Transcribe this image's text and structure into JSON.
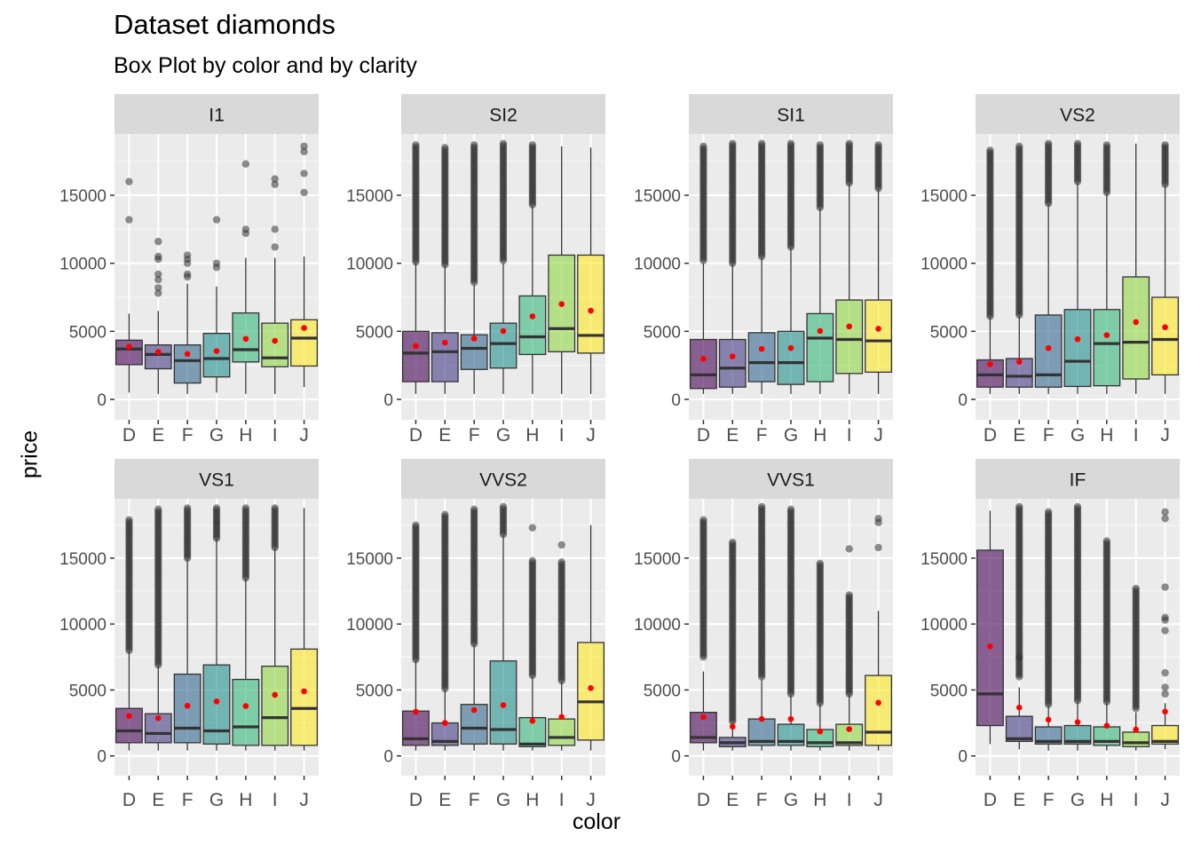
{
  "colors": {
    "panel_bg": "#EBEBEB",
    "strip_bg": "#D9D9D9",
    "grid_major": "#FFFFFF",
    "tick_label": "#4D4D4D",
    "mean_point": "#FF0000",
    "fill": {
      "D": "#440154",
      "E": "#443A83",
      "F": "#31688E",
      "G": "#21908C",
      "H": "#35B779",
      "I": "#8FD744",
      "J": "#FDE725"
    }
  },
  "chart_data": {
    "type": "box",
    "title": "Dataset diamonds",
    "subtitle": "Box Plot by color and by clarity",
    "xlabel": "color",
    "ylabel": "price",
    "categories": [
      "D",
      "E",
      "F",
      "G",
      "H",
      "I",
      "J"
    ],
    "facet_by": "clarity",
    "facet_layout": "2 rows x 4 columns, free y scales",
    "y_ticks": [
      0,
      5000,
      10000,
      15000
    ],
    "grid": true,
    "stat_point": "red point per box (mean)",
    "panels": [
      {
        "facet": "I1",
        "ylim": [
          -1500,
          19500
        ],
        "boxes": [
          {
            "cat": "D",
            "low": 500,
            "q1": 2550,
            "med": 3700,
            "q3": 4350,
            "high": 6300,
            "mean": 3860,
            "outliers": [
              13200,
              16000
            ]
          },
          {
            "cat": "E",
            "low": 400,
            "q1": 2250,
            "med": 3300,
            "q3": 4000,
            "high": 6500,
            "mean": 3490,
            "outliers": [
              7800,
              8200,
              8800,
              9200,
              10300,
              10500,
              11600
            ]
          },
          {
            "cat": "F",
            "low": 400,
            "q1": 1200,
            "med": 2850,
            "q3": 4000,
            "high": 8500,
            "mean": 3340,
            "outliers": [
              9000,
              9200,
              10000,
              10300,
              10600
            ]
          },
          {
            "cat": "G",
            "low": 500,
            "q1": 1650,
            "med": 3000,
            "q3": 4850,
            "high": 8300,
            "mean": 3550,
            "outliers": [
              9700,
              10000,
              13200
            ]
          },
          {
            "cat": "H",
            "low": 400,
            "q1": 2750,
            "med": 3650,
            "q3": 6350,
            "high": 10400,
            "mean": 4450,
            "outliers": [
              12200,
              12500,
              17300
            ]
          },
          {
            "cat": "I",
            "low": 400,
            "q1": 2400,
            "med": 3050,
            "q3": 5600,
            "high": 10400,
            "mean": 4300,
            "outliers": [
              11200,
              12500,
              15800,
              16200
            ]
          },
          {
            "cat": "J",
            "low": 900,
            "q1": 2450,
            "med": 4500,
            "q3": 5850,
            "high": 10500,
            "mean": 5250,
            "outliers": [
              15200,
              16600,
              18200,
              18600
            ]
          }
        ]
      },
      {
        "facet": "SI2",
        "ylim": [
          -1500,
          19500
        ],
        "boxes": [
          {
            "cat": "D",
            "low": 400,
            "q1": 1300,
            "med": 3400,
            "q3": 5000,
            "high": 10000,
            "mean": 3930,
            "dense_outliers": [
              10100,
              18700
            ]
          },
          {
            "cat": "E",
            "low": 400,
            "q1": 1300,
            "med": 3500,
            "q3": 4900,
            "high": 9800,
            "mean": 4170,
            "dense_outliers": [
              9900,
              18500
            ]
          },
          {
            "cat": "F",
            "low": 400,
            "q1": 2200,
            "med": 3750,
            "q3": 4750,
            "high": 8400,
            "mean": 4470,
            "dense_outliers": [
              8600,
              18700
            ]
          },
          {
            "cat": "G",
            "low": 400,
            "q1": 2300,
            "med": 4100,
            "q3": 5600,
            "high": 10000,
            "mean": 5020,
            "dense_outliers": [
              10200,
              18800
            ]
          },
          {
            "cat": "H",
            "low": 400,
            "q1": 3300,
            "med": 4600,
            "q3": 7600,
            "high": 14200,
            "mean": 6100,
            "dense_outliers": [
              14300,
              18700
            ]
          },
          {
            "cat": "I",
            "low": 400,
            "q1": 3500,
            "med": 5200,
            "q3": 10600,
            "high": 18600,
            "mean": 7000,
            "outliers": []
          },
          {
            "cat": "J",
            "low": 400,
            "q1": 3400,
            "med": 4700,
            "q3": 10600,
            "high": 18500,
            "mean": 6520,
            "outliers": []
          }
        ]
      },
      {
        "facet": "SI1",
        "ylim": [
          -1500,
          19500
        ],
        "boxes": [
          {
            "cat": "D",
            "low": 400,
            "q1": 800,
            "med": 1800,
            "q3": 4400,
            "high": 10000,
            "mean": 2980,
            "dense_outliers": [
              10200,
              18600
            ]
          },
          {
            "cat": "E",
            "low": 400,
            "q1": 900,
            "med": 2300,
            "q3": 4400,
            "high": 9900,
            "mean": 3160,
            "dense_outliers": [
              10000,
              18800
            ]
          },
          {
            "cat": "F",
            "low": 400,
            "q1": 1300,
            "med": 2700,
            "q3": 4900,
            "high": 10400,
            "mean": 3710,
            "dense_outliers": [
              10500,
              18800
            ]
          },
          {
            "cat": "G",
            "low": 400,
            "q1": 1100,
            "med": 2700,
            "q3": 5000,
            "high": 11100,
            "mean": 3770,
            "dense_outliers": [
              11200,
              18800
            ]
          },
          {
            "cat": "H",
            "low": 400,
            "q1": 1300,
            "med": 4500,
            "q3": 6300,
            "high": 14000,
            "mean": 5030,
            "dense_outliers": [
              14100,
              18700
            ]
          },
          {
            "cat": "I",
            "low": 400,
            "q1": 1900,
            "med": 4400,
            "q3": 7300,
            "high": 15800,
            "mean": 5360,
            "dense_outliers": [
              15900,
              18800
            ]
          },
          {
            "cat": "J",
            "low": 400,
            "q1": 2000,
            "med": 4300,
            "q3": 7300,
            "high": 15400,
            "mean": 5190,
            "dense_outliers": [
              15500,
              18700
            ]
          }
        ]
      },
      {
        "facet": "VS2",
        "ylim": [
          -1500,
          19500
        ],
        "boxes": [
          {
            "cat": "D",
            "low": 400,
            "q1": 900,
            "med": 1800,
            "q3": 2900,
            "high": 6000,
            "mean": 2580,
            "dense_outliers": [
              6100,
              18300
            ]
          },
          {
            "cat": "E",
            "low": 400,
            "q1": 900,
            "med": 1700,
            "q3": 3000,
            "high": 6100,
            "mean": 2760,
            "dense_outliers": [
              6200,
              18600
            ]
          },
          {
            "cat": "F",
            "low": 400,
            "q1": 900,
            "med": 1800,
            "q3": 6200,
            "high": 14300,
            "mean": 3760,
            "dense_outliers": [
              14400,
              18800
            ]
          },
          {
            "cat": "G",
            "low": 400,
            "q1": 950,
            "med": 2800,
            "q3": 6600,
            "high": 15900,
            "mean": 4420,
            "dense_outliers": [
              16000,
              18800
            ]
          },
          {
            "cat": "H",
            "low": 400,
            "q1": 1000,
            "med": 4100,
            "q3": 6600,
            "high": 15100,
            "mean": 4720,
            "dense_outliers": [
              15200,
              18700
            ]
          },
          {
            "cat": "I",
            "low": 400,
            "q1": 1500,
            "med": 4200,
            "q3": 9000,
            "high": 18800,
            "mean": 5680,
            "outliers": []
          },
          {
            "cat": "J",
            "low": 400,
            "q1": 1800,
            "med": 4400,
            "q3": 7500,
            "high": 15700,
            "mean": 5300,
            "dense_outliers": [
              15800,
              18700
            ]
          }
        ]
      },
      {
        "facet": "VS1",
        "ylim": [
          -1500,
          19500
        ],
        "boxes": [
          {
            "cat": "D",
            "low": 400,
            "q1": 1000,
            "med": 1900,
            "q3": 3600,
            "high": 7900,
            "mean": 3030,
            "dense_outliers": [
              8000,
              17900
            ]
          },
          {
            "cat": "E",
            "low": 400,
            "q1": 1000,
            "med": 1700,
            "q3": 3200,
            "high": 6800,
            "mean": 2860,
            "dense_outliers": [
              6900,
              18700
            ]
          },
          {
            "cat": "F",
            "low": 400,
            "q1": 1000,
            "med": 2100,
            "q3": 6200,
            "high": 14900,
            "mean": 3800,
            "dense_outliers": [
              15000,
              18800
            ]
          },
          {
            "cat": "G",
            "low": 400,
            "q1": 900,
            "med": 1900,
            "q3": 6900,
            "high": 16400,
            "mean": 4130,
            "dense_outliers": [
              16500,
              18800
            ]
          },
          {
            "cat": "H",
            "low": 400,
            "q1": 800,
            "med": 2200,
            "q3": 5800,
            "high": 13400,
            "mean": 3780,
            "dense_outliers": [
              13500,
              18800
            ]
          },
          {
            "cat": "I",
            "low": 400,
            "q1": 800,
            "med": 2900,
            "q3": 6800,
            "high": 15700,
            "mean": 4630,
            "dense_outliers": [
              15800,
              18800
            ]
          },
          {
            "cat": "J",
            "low": 400,
            "q1": 800,
            "med": 3600,
            "q3": 8100,
            "high": 18800,
            "mean": 4900,
            "outliers": []
          }
        ]
      },
      {
        "facet": "VVS2",
        "ylim": [
          -1500,
          19500
        ],
        "boxes": [
          {
            "cat": "D",
            "low": 400,
            "q1": 800,
            "med": 1300,
            "q3": 3400,
            "high": 7200,
            "mean": 3350,
            "dense_outliers": [
              7300,
              17500
            ]
          },
          {
            "cat": "E",
            "low": 400,
            "q1": 800,
            "med": 1100,
            "q3": 2500,
            "high": 5000,
            "mean": 2500,
            "dense_outliers": [
              5100,
              18300
            ]
          },
          {
            "cat": "F",
            "low": 400,
            "q1": 900,
            "med": 2100,
            "q3": 3900,
            "high": 8400,
            "mean": 3480,
            "dense_outliers": [
              8500,
              18700
            ]
          },
          {
            "cat": "G",
            "low": 400,
            "q1": 900,
            "med": 2000,
            "q3": 7200,
            "high": 16700,
            "mean": 3850,
            "dense_outliers": [
              16800,
              18900
            ]
          },
          {
            "cat": "H",
            "low": 400,
            "q1": 700,
            "med": 900,
            "q3": 2900,
            "high": 6000,
            "mean": 2650,
            "dense_outliers": [
              6100,
              14800
            ],
            "outliers": [
              17300
            ]
          },
          {
            "cat": "I",
            "low": 400,
            "q1": 800,
            "med": 1400,
            "q3": 2800,
            "high": 5600,
            "mean": 2950,
            "dense_outliers": [
              5700,
              14700
            ],
            "outliers": [
              16000
            ]
          },
          {
            "cat": "J",
            "low": 400,
            "q1": 1200,
            "med": 4100,
            "q3": 8600,
            "high": 17500,
            "mean": 5140,
            "outliers": []
          }
        ]
      },
      {
        "facet": "VVS1",
        "ylim": [
          -1500,
          19500
        ],
        "boxes": [
          {
            "cat": "D",
            "low": 400,
            "q1": 1000,
            "med": 1400,
            "q3": 3300,
            "high": 6400,
            "mean": 2950,
            "dense_outliers": [
              7500,
              17900
            ]
          },
          {
            "cat": "E",
            "low": 400,
            "q1": 700,
            "med": 1000,
            "q3": 1400,
            "high": 2500,
            "mean": 2220,
            "dense_outliers": [
              2600,
              16200
            ]
          },
          {
            "cat": "F",
            "low": 400,
            "q1": 800,
            "med": 1100,
            "q3": 2800,
            "high": 5800,
            "mean": 2800,
            "dense_outliers": [
              6000,
              18900
            ]
          },
          {
            "cat": "G",
            "low": 400,
            "q1": 800,
            "med": 1100,
            "q3": 2400,
            "high": 4600,
            "mean": 2800,
            "dense_outliers": [
              4700,
              18700
            ]
          },
          {
            "cat": "H",
            "low": 400,
            "q1": 700,
            "med": 1000,
            "q3": 2000,
            "high": 3900,
            "mean": 1850,
            "dense_outliers": [
              4000,
              14600
            ]
          },
          {
            "cat": "I",
            "low": 400,
            "q1": 800,
            "med": 1000,
            "q3": 2400,
            "high": 4600,
            "mean": 2030,
            "dense_outliers": [
              4700,
              12200
            ],
            "outliers": [
              15700
            ]
          },
          {
            "cat": "J",
            "low": 400,
            "q1": 800,
            "med": 1800,
            "q3": 6100,
            "high": 11000,
            "mean": 4030,
            "outliers": [
              15800,
              17700,
              18000
            ]
          }
        ]
      },
      {
        "facet": "IF",
        "ylim": [
          -1500,
          19500
        ],
        "boxes": [
          {
            "cat": "D",
            "low": 900,
            "q1": 2300,
            "med": 4700,
            "q3": 15600,
            "high": 18600,
            "mean": 8310,
            "outliers": []
          },
          {
            "cat": "E",
            "low": 500,
            "q1": 1100,
            "med": 1300,
            "q3": 3000,
            "high": 5200,
            "mean": 3670,
            "dense_outliers": [
              6000,
              18900
            ],
            "outliers": [
              7500
            ]
          },
          {
            "cat": "F",
            "low": 400,
            "q1": 900,
            "med": 1100,
            "q3": 2200,
            "high": 3800,
            "mean": 2750,
            "dense_outliers": [
              3900,
              18500
            ]
          },
          {
            "cat": "G",
            "low": 400,
            "q1": 900,
            "med": 1100,
            "q3": 2300,
            "high": 4100,
            "mean": 2560,
            "dense_outliers": [
              4200,
              18900
            ]
          },
          {
            "cat": "H",
            "low": 400,
            "q1": 800,
            "med": 1100,
            "q3": 2200,
            "high": 4000,
            "mean": 2290,
            "dense_outliers": [
              4100,
              16300
            ]
          },
          {
            "cat": "I",
            "low": 400,
            "q1": 700,
            "med": 1000,
            "q3": 1800,
            "high": 3300,
            "mean": 2000,
            "dense_outliers": [
              3600,
              12700
            ]
          },
          {
            "cat": "J",
            "low": 500,
            "q1": 900,
            "med": 1100,
            "q3": 2300,
            "high": 4000,
            "mean": 3360,
            "outliers": [
              4700,
              5200,
              6300,
              9500,
              10300,
              10500,
              12800,
              18000,
              18500
            ]
          }
        ]
      }
    ]
  }
}
